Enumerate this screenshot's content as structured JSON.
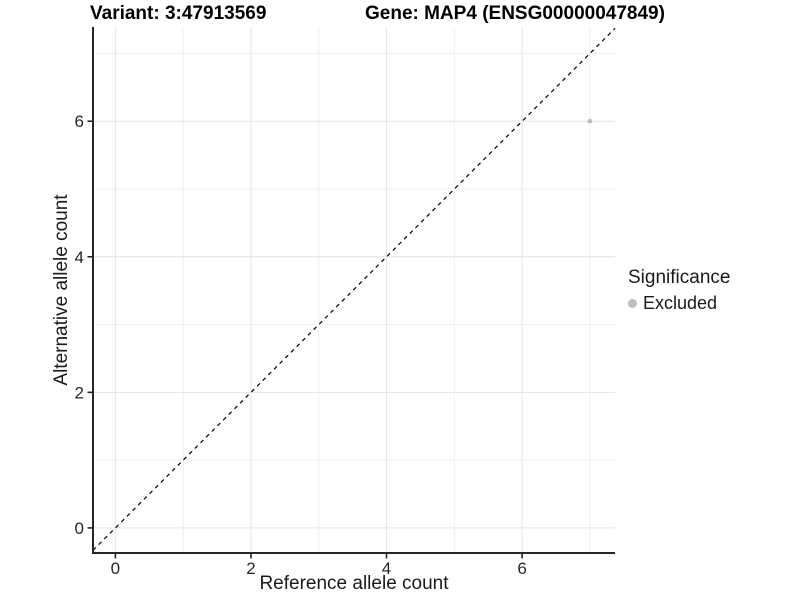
{
  "titles": {
    "variant": "Variant: 3:47913569",
    "gene": "Gene: MAP4 (ENSG00000047849)"
  },
  "legend": {
    "title": "Significance",
    "items": [
      {
        "label": "Excluded",
        "color": "#bebebe",
        "marker": "circle"
      }
    ]
  },
  "colors": {
    "background": "#ffffff",
    "grid_major": "#e4e4e4",
    "grid_minor": "#efefef",
    "axis": "#262626",
    "text": "#1a1a1a",
    "identity_line": "#000000",
    "point_excluded": "#bebebe"
  },
  "chart_data": {
    "type": "scatter",
    "title": "Variant: 3:47913569 — Gene: MAP4 (ENSG00000047849)",
    "xlabel": "Reference allele count",
    "ylabel": "Alternative allele count",
    "xticks": [
      0,
      2,
      4,
      6
    ],
    "yticks": [
      0,
      2,
      4,
      6
    ],
    "minor_breaks": [
      1,
      3,
      5,
      7
    ],
    "xlim": [
      -0.33,
      7.37
    ],
    "ylim": [
      -0.37,
      7.39
    ],
    "grid": true,
    "legend_position": "right",
    "identity_line": {
      "equation": "y = x",
      "style": "dashed",
      "color": "#000000"
    },
    "series": [
      {
        "name": "Excluded",
        "color": "#bebebe",
        "points": [
          {
            "x": 7,
            "y": 6
          }
        ]
      }
    ],
    "points": [
      {
        "x": 7,
        "y": 6,
        "significance": "Excluded",
        "color": "#bebebe"
      }
    ]
  }
}
